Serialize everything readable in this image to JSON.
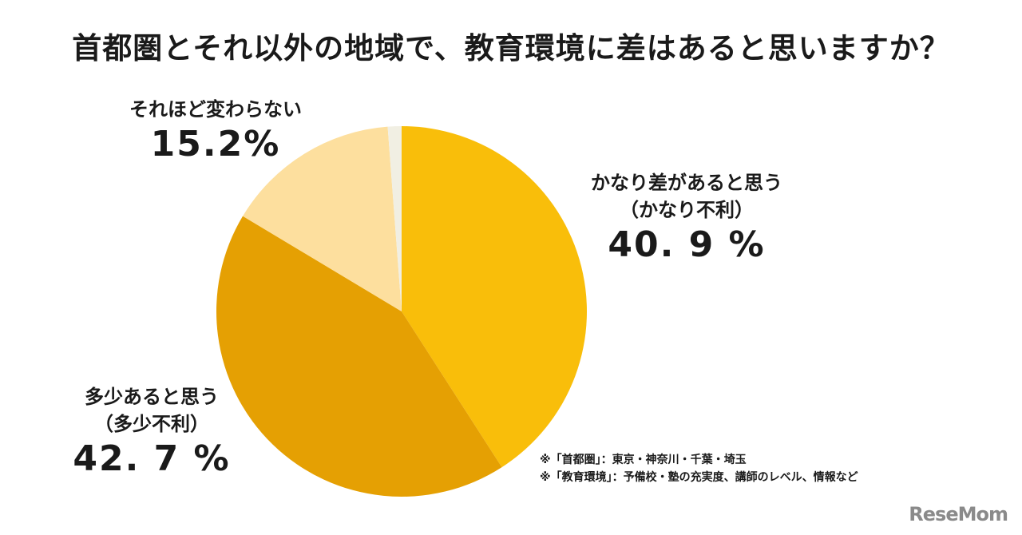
{
  "chart_data": {
    "type": "pie",
    "title": "首都圏とそれ以外の地域で、教育環境に差はあると思いますか？",
    "start": "top",
    "direction": "clockwise",
    "slices": [
      {
        "label": "かなり差があると思う",
        "sublabel": "（かなり不利）",
        "value": 40.9,
        "display": "40. 9 %",
        "color": "#F9BE0A"
      },
      {
        "label": "多少あると思う",
        "sublabel": "（多少不利）",
        "value": 42.7,
        "display": "42. 7 %",
        "color": "#E5A003"
      },
      {
        "label": "それほど変わらない",
        "sublabel": "",
        "value": 15.2,
        "display": "15.2%",
        "color": "#FDDF9E"
      },
      {
        "label": "",
        "sublabel": "",
        "value": 1.2,
        "display": "",
        "color": "#F1EFE3"
      }
    ]
  },
  "notes": [
    "※「首都圏」：東京・神奈川・千葉・埼玉",
    "※「教育環境」：予備校・塾の充実度、講師のレベル、情報など"
  ],
  "logo": "ReseMom"
}
